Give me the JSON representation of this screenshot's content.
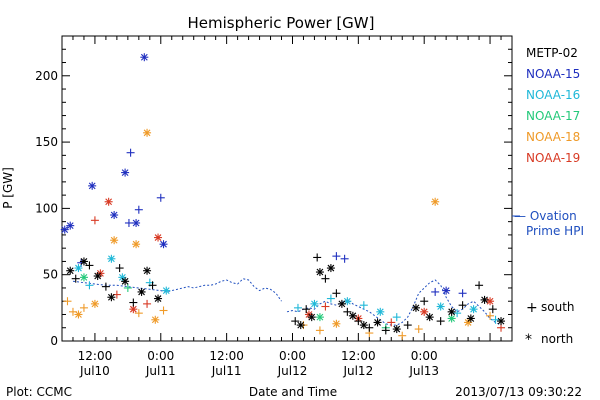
{
  "chart_data": {
    "type": "scatter",
    "title": "Hemispheric Power [GW]",
    "xlabel": "Date and Time",
    "ylabel": "P [GW]",
    "x_unit": "hours since 2013-07-10 00:00 UT",
    "xlim": [
      6,
      88
    ],
    "ylim": [
      0,
      230
    ],
    "yticks": [
      0,
      50,
      100,
      150,
      200
    ],
    "xtick_hours": [
      12,
      24,
      36,
      48,
      60,
      72
    ],
    "xtick_labels": [
      {
        "hour": 12,
        "time": "12:00",
        "date": "Jul10"
      },
      {
        "hour": 24,
        "time": "0:00",
        "date": "Jul11"
      },
      {
        "hour": 36,
        "time": "12:00",
        "date": "Jul11"
      },
      {
        "hour": 48,
        "time": "0:00",
        "date": "Jul12"
      },
      {
        "hour": 60,
        "time": "12:00",
        "date": "Jul12"
      },
      {
        "hour": 72,
        "time": "0:00",
        "date": "Jul13"
      }
    ],
    "series": [
      {
        "name": "METP-02",
        "color": "#000000"
      },
      {
        "name": "NOAA-15",
        "color": "#1f2fbf"
      },
      {
        "name": "NOAA-16",
        "color": "#1fb8d8"
      },
      {
        "name": "NOAA-17",
        "color": "#23c97a"
      },
      {
        "name": "NOAA-18",
        "color": "#ef9a28"
      },
      {
        "name": "NOAA-19",
        "color": "#d83a24"
      }
    ],
    "ovation": {
      "name_line1": "— Ovation",
      "name_line2": "Prime HPI",
      "color": "#1f4fbf",
      "segments": [
        [
          [
            8,
            45
          ],
          [
            10,
            44
          ],
          [
            12,
            43
          ],
          [
            14,
            42
          ],
          [
            16,
            42
          ],
          [
            18,
            41
          ],
          [
            20,
            40
          ],
          [
            22,
            39
          ],
          [
            24,
            38
          ],
          [
            25,
            37
          ],
          [
            26,
            38
          ],
          [
            27,
            39
          ],
          [
            28,
            40
          ],
          [
            29,
            41
          ],
          [
            30,
            40
          ],
          [
            31,
            41
          ],
          [
            32,
            42
          ],
          [
            33,
            42
          ],
          [
            34,
            43
          ],
          [
            35,
            45
          ],
          [
            36,
            46
          ],
          [
            37,
            44
          ],
          [
            38,
            43
          ],
          [
            38.5,
            45
          ],
          [
            39,
            47
          ],
          [
            40,
            46
          ],
          [
            41,
            41
          ],
          [
            42,
            38
          ],
          [
            43,
            40
          ],
          [
            44,
            39
          ],
          [
            45,
            36
          ],
          [
            46,
            30
          ]
        ],
        [
          [
            47,
            22
          ],
          [
            48,
            23
          ],
          [
            49,
            22
          ],
          [
            50,
            24
          ],
          [
            51,
            25
          ],
          [
            52,
            24
          ],
          [
            53,
            28
          ],
          [
            54,
            30
          ],
          [
            55,
            28
          ],
          [
            56,
            27
          ],
          [
            57,
            29
          ],
          [
            58,
            31
          ],
          [
            59,
            28
          ],
          [
            60,
            26
          ],
          [
            61,
            24
          ],
          [
            62,
            22
          ],
          [
            63,
            19
          ],
          [
            64,
            16
          ],
          [
            65,
            13
          ],
          [
            66,
            12
          ],
          [
            67,
            12
          ],
          [
            68,
            14
          ],
          [
            69,
            18
          ],
          [
            70,
            26
          ],
          [
            71,
            36
          ],
          [
            72,
            40
          ],
          [
            73,
            44
          ],
          [
            74,
            46
          ],
          [
            75,
            42
          ],
          [
            76,
            33
          ],
          [
            77,
            26
          ],
          [
            78,
            22
          ],
          [
            79,
            24
          ],
          [
            80,
            28
          ],
          [
            81,
            30
          ],
          [
            82,
            26
          ],
          [
            83,
            22
          ],
          [
            84,
            17
          ],
          [
            85,
            14
          ],
          [
            86,
            12
          ]
        ]
      ]
    },
    "points": [
      {
        "sat": "NOAA-15",
        "hemi": "north",
        "x": 6.5,
        "y": 84
      },
      {
        "sat": "NOAA-15",
        "hemi": "north",
        "x": 7.5,
        "y": 87
      },
      {
        "sat": "NOAA-15",
        "hemi": "south",
        "x": 9.5,
        "y": 59
      },
      {
        "sat": "NOAA-15",
        "hemi": "north",
        "x": 11.5,
        "y": 117
      },
      {
        "sat": "NOAA-15",
        "hemi": "north",
        "x": 15.5,
        "y": 95
      },
      {
        "sat": "NOAA-15",
        "hemi": "north",
        "x": 17.5,
        "y": 127
      },
      {
        "sat": "NOAA-15",
        "hemi": "south",
        "x": 18.5,
        "y": 142
      },
      {
        "sat": "NOAA-15",
        "hemi": "south",
        "x": 18.2,
        "y": 89
      },
      {
        "sat": "NOAA-15",
        "hemi": "north",
        "x": 19.5,
        "y": 89
      },
      {
        "sat": "NOAA-15",
        "hemi": "south",
        "x": 20,
        "y": 99
      },
      {
        "sat": "NOAA-15",
        "hemi": "north",
        "x": 21,
        "y": 214
      },
      {
        "sat": "NOAA-15",
        "hemi": "south",
        "x": 24,
        "y": 108
      },
      {
        "sat": "NOAA-15",
        "hemi": "north",
        "x": 24.5,
        "y": 73
      },
      {
        "sat": "NOAA-15",
        "hemi": "south",
        "x": 56,
        "y": 64
      },
      {
        "sat": "NOAA-15",
        "hemi": "south",
        "x": 57.5,
        "y": 62
      },
      {
        "sat": "NOAA-15",
        "hemi": "north",
        "x": 76,
        "y": 38
      },
      {
        "sat": "NOAA-15",
        "hemi": "south",
        "x": 74,
        "y": 37
      },
      {
        "sat": "NOAA-15",
        "hemi": "south",
        "x": 79,
        "y": 36
      },
      {
        "sat": "NOAA-18",
        "hemi": "north",
        "x": 21.5,
        "y": 157
      },
      {
        "sat": "NOAA-18",
        "hemi": "north",
        "x": 15.5,
        "y": 76
      },
      {
        "sat": "NOAA-18",
        "hemi": "north",
        "x": 19.5,
        "y": 73
      },
      {
        "sat": "NOAA-18",
        "hemi": "south",
        "x": 7,
        "y": 30
      },
      {
        "sat": "NOAA-18",
        "hemi": "south",
        "x": 8,
        "y": 22
      },
      {
        "sat": "NOAA-18",
        "hemi": "north",
        "x": 9,
        "y": 20
      },
      {
        "sat": "NOAA-18",
        "hemi": "south",
        "x": 10,
        "y": 25
      },
      {
        "sat": "NOAA-18",
        "hemi": "north",
        "x": 12,
        "y": 28
      },
      {
        "sat": "NOAA-18",
        "hemi": "south",
        "x": 20,
        "y": 21
      },
      {
        "sat": "NOAA-18",
        "hemi": "north",
        "x": 23,
        "y": 16
      },
      {
        "sat": "NOAA-18",
        "hemi": "south",
        "x": 24.5,
        "y": 23
      },
      {
        "sat": "NOAA-18",
        "hemi": "north",
        "x": 74,
        "y": 105
      },
      {
        "sat": "NOAA-18",
        "hemi": "south",
        "x": 50,
        "y": 12
      },
      {
        "sat": "NOAA-18",
        "hemi": "south",
        "x": 53,
        "y": 8
      },
      {
        "sat": "NOAA-18",
        "hemi": "north",
        "x": 56,
        "y": 13
      },
      {
        "sat": "NOAA-18",
        "hemi": "south",
        "x": 62,
        "y": 6
      },
      {
        "sat": "NOAA-18",
        "hemi": "south",
        "x": 68,
        "y": 4
      },
      {
        "sat": "NOAA-18",
        "hemi": "south",
        "x": 71,
        "y": 9
      },
      {
        "sat": "NOAA-18",
        "hemi": "north",
        "x": 80,
        "y": 14
      },
      {
        "sat": "NOAA-18",
        "hemi": "south",
        "x": 84,
        "y": 19
      },
      {
        "sat": "NOAA-19",
        "hemi": "south",
        "x": 12,
        "y": 91
      },
      {
        "sat": "NOAA-19",
        "hemi": "north",
        "x": 14.5,
        "y": 105
      },
      {
        "sat": "NOAA-19",
        "hemi": "north",
        "x": 23.5,
        "y": 78
      },
      {
        "sat": "NOAA-19",
        "hemi": "north",
        "x": 13,
        "y": 51
      },
      {
        "sat": "NOAA-19",
        "hemi": "south",
        "x": 16,
        "y": 35
      },
      {
        "sat": "NOAA-19",
        "hemi": "north",
        "x": 19,
        "y": 24
      },
      {
        "sat": "NOAA-19",
        "hemi": "south",
        "x": 21.5,
        "y": 28
      },
      {
        "sat": "NOAA-19",
        "hemi": "north",
        "x": 51,
        "y": 20
      },
      {
        "sat": "NOAA-19",
        "hemi": "south",
        "x": 54,
        "y": 26
      },
      {
        "sat": "NOAA-19",
        "hemi": "north",
        "x": 60,
        "y": 17
      },
      {
        "sat": "NOAA-19",
        "hemi": "south",
        "x": 66,
        "y": 14
      },
      {
        "sat": "NOAA-19",
        "hemi": "north",
        "x": 72,
        "y": 22
      },
      {
        "sat": "NOAA-19",
        "hemi": "north",
        "x": 84,
        "y": 30
      },
      {
        "sat": "NOAA-19",
        "hemi": "south",
        "x": 86,
        "y": 10
      },
      {
        "sat": "NOAA-16",
        "hemi": "north",
        "x": 9,
        "y": 55
      },
      {
        "sat": "NOAA-16",
        "hemi": "north",
        "x": 15,
        "y": 62
      },
      {
        "sat": "NOAA-16",
        "hemi": "south",
        "x": 11,
        "y": 42
      },
      {
        "sat": "NOAA-16",
        "hemi": "north",
        "x": 17,
        "y": 48
      },
      {
        "sat": "NOAA-16",
        "hemi": "south",
        "x": 22,
        "y": 44
      },
      {
        "sat": "NOAA-16",
        "hemi": "north",
        "x": 25,
        "y": 38
      },
      {
        "sat": "NOAA-16",
        "hemi": "south",
        "x": 49,
        "y": 25
      },
      {
        "sat": "NOAA-16",
        "hemi": "north",
        "x": 52,
        "y": 28
      },
      {
        "sat": "NOAA-16",
        "hemi": "south",
        "x": 55,
        "y": 32
      },
      {
        "sat": "NOAA-16",
        "hemi": "north",
        "x": 58,
        "y": 30
      },
      {
        "sat": "NOAA-16",
        "hemi": "south",
        "x": 61,
        "y": 27
      },
      {
        "sat": "NOAA-16",
        "hemi": "north",
        "x": 64,
        "y": 22
      },
      {
        "sat": "NOAA-16",
        "hemi": "south",
        "x": 67,
        "y": 18
      },
      {
        "sat": "NOAA-16",
        "hemi": "north",
        "x": 75,
        "y": 26
      },
      {
        "sat": "NOAA-16",
        "hemi": "south",
        "x": 78,
        "y": 21
      },
      {
        "sat": "NOAA-16",
        "hemi": "north",
        "x": 81,
        "y": 24
      },
      {
        "sat": "NOAA-16",
        "hemi": "south",
        "x": 85,
        "y": 16
      },
      {
        "sat": "NOAA-17",
        "hemi": "north",
        "x": 10,
        "y": 48
      },
      {
        "sat": "NOAA-17",
        "hemi": "south",
        "x": 18,
        "y": 40
      },
      {
        "sat": "NOAA-17",
        "hemi": "north",
        "x": 53,
        "y": 18
      },
      {
        "sat": "NOAA-17",
        "hemi": "south",
        "x": 65,
        "y": 10
      },
      {
        "sat": "NOAA-17",
        "hemi": "north",
        "x": 77,
        "y": 17
      },
      {
        "sat": "METP-02",
        "hemi": "north",
        "x": 7.5,
        "y": 53
      },
      {
        "sat": "METP-02",
        "hemi": "south",
        "x": 8.5,
        "y": 47
      },
      {
        "sat": "METP-02",
        "hemi": "north",
        "x": 10,
        "y": 60
      },
      {
        "sat": "METP-02",
        "hemi": "south",
        "x": 11,
        "y": 57
      },
      {
        "sat": "METP-02",
        "hemi": "north",
        "x": 12.5,
        "y": 49
      },
      {
        "sat": "METP-02",
        "hemi": "south",
        "x": 14,
        "y": 41
      },
      {
        "sat": "METP-02",
        "hemi": "north",
        "x": 15,
        "y": 33
      },
      {
        "sat": "METP-02",
        "hemi": "south",
        "x": 16.5,
        "y": 55
      },
      {
        "sat": "METP-02",
        "hemi": "north",
        "x": 17.5,
        "y": 45
      },
      {
        "sat": "METP-02",
        "hemi": "south",
        "x": 19,
        "y": 29
      },
      {
        "sat": "METP-02",
        "hemi": "north",
        "x": 20.5,
        "y": 37
      },
      {
        "sat": "METP-02",
        "hemi": "north",
        "x": 21.5,
        "y": 53
      },
      {
        "sat": "METP-02",
        "hemi": "south",
        "x": 22.5,
        "y": 42
      },
      {
        "sat": "METP-02",
        "hemi": "north",
        "x": 23.5,
        "y": 32
      },
      {
        "sat": "METP-02",
        "hemi": "south",
        "x": 48.5,
        "y": 15
      },
      {
        "sat": "METP-02",
        "hemi": "north",
        "x": 49.5,
        "y": 12
      },
      {
        "sat": "METP-02",
        "hemi": "south",
        "x": 50.5,
        "y": 24
      },
      {
        "sat": "METP-02",
        "hemi": "north",
        "x": 51.5,
        "y": 18
      },
      {
        "sat": "METP-02",
        "hemi": "south",
        "x": 52.5,
        "y": 63
      },
      {
        "sat": "METP-02",
        "hemi": "north",
        "x": 53,
        "y": 52
      },
      {
        "sat": "METP-02",
        "hemi": "south",
        "x": 54,
        "y": 47
      },
      {
        "sat": "METP-02",
        "hemi": "north",
        "x": 55,
        "y": 55
      },
      {
        "sat": "METP-02",
        "hemi": "south",
        "x": 56,
        "y": 36
      },
      {
        "sat": "METP-02",
        "hemi": "north",
        "x": 57,
        "y": 28
      },
      {
        "sat": "METP-02",
        "hemi": "south",
        "x": 58,
        "y": 22
      },
      {
        "sat": "METP-02",
        "hemi": "north",
        "x": 59,
        "y": 19
      },
      {
        "sat": "METP-02",
        "hemi": "south",
        "x": 60,
        "y": 15
      },
      {
        "sat": "METP-02",
        "hemi": "north",
        "x": 61,
        "y": 12
      },
      {
        "sat": "METP-02",
        "hemi": "south",
        "x": 62,
        "y": 10
      },
      {
        "sat": "METP-02",
        "hemi": "north",
        "x": 63.5,
        "y": 14
      },
      {
        "sat": "METP-02",
        "hemi": "south",
        "x": 65,
        "y": 8
      },
      {
        "sat": "METP-02",
        "hemi": "north",
        "x": 67,
        "y": 9
      },
      {
        "sat": "METP-02",
        "hemi": "south",
        "x": 69,
        "y": 12
      },
      {
        "sat": "METP-02",
        "hemi": "north",
        "x": 70.5,
        "y": 25
      },
      {
        "sat": "METP-02",
        "hemi": "south",
        "x": 72,
        "y": 30
      },
      {
        "sat": "METP-02",
        "hemi": "north",
        "x": 73,
        "y": 18
      },
      {
        "sat": "METP-02",
        "hemi": "south",
        "x": 75,
        "y": 15
      },
      {
        "sat": "METP-02",
        "hemi": "north",
        "x": 77,
        "y": 22
      },
      {
        "sat": "METP-02",
        "hemi": "south",
        "x": 79,
        "y": 27
      },
      {
        "sat": "METP-02",
        "hemi": "north",
        "x": 80.5,
        "y": 17
      },
      {
        "sat": "METP-02",
        "hemi": "south",
        "x": 82,
        "y": 42
      },
      {
        "sat": "METP-02",
        "hemi": "north",
        "x": 83,
        "y": 31
      },
      {
        "sat": "METP-02",
        "hemi": "south",
        "x": 84.5,
        "y": 24
      },
      {
        "sat": "METP-02",
        "hemi": "north",
        "x": 86,
        "y": 15
      }
    ],
    "symbol_legend": {
      "south_symbol": "+",
      "south": "south",
      "north_symbol": "*",
      "north": "north"
    }
  },
  "footer": {
    "plot_credit": "Plot: CCMC",
    "timestamp": "2013/07/13 09:30:22"
  }
}
